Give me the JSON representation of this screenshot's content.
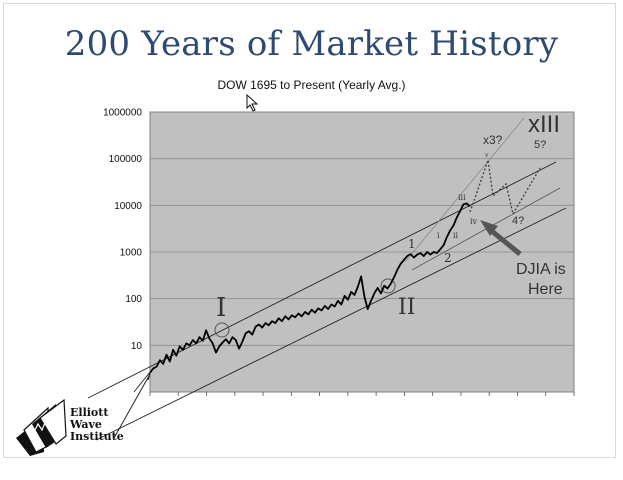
{
  "slide": {
    "title": "200 Years of Market History"
  },
  "logo": {
    "lines": [
      "Elliott",
      "Wave",
      "Institute"
    ],
    "icon": "elliott-wave-logo-icon"
  },
  "cursor_icon": "mouse-pointer-icon",
  "chart_data": {
    "type": "line",
    "title": "DOW 1695 to Present (Yearly Avg.)",
    "y_scale": "log",
    "ylim": [
      1,
      1000000
    ],
    "y_tick_labels": [
      "1000000",
      "100000",
      "10000",
      "1000",
      "100",
      "10"
    ],
    "x_tick_count": 15,
    "grid": true,
    "background": "#c0c0c0",
    "line_color": "#000000",
    "series": [
      {
        "values": [
          2.6,
          3.2,
          3.5,
          4.8,
          4.0,
          6.3,
          4.5,
          8.0,
          6.0,
          9.5,
          8.0,
          11.0,
          10.0,
          13.0,
          11.0,
          15.0,
          12.5,
          21.0,
          14.0,
          11.0,
          7.0,
          9.5,
          11.5,
          13.5,
          11.0,
          15.0,
          13.0,
          8.5,
          12.0,
          18.0,
          20.0,
          17.0,
          25.0,
          28.0,
          24.0,
          30.0,
          27.0,
          33.0,
          30.0,
          38.0,
          33.0,
          42.0,
          36.0,
          44.0,
          40.0,
          48.0,
          42.0,
          52.0,
          46.0,
          58.0,
          50.0,
          62.0,
          56.0,
          70.0,
          60.0,
          75.0,
          68.0,
          90.0,
          75.0,
          115.0,
          95.0,
          140.0,
          120.0,
          180.0,
          300.0,
          110.0,
          60.0,
          90.0,
          130.0,
          170.0,
          130.0,
          190.0,
          165.0,
          210.0,
          290.0,
          420.0,
          560.0,
          680.0,
          820.0,
          900.0,
          760.0,
          880.0,
          950.0,
          820.0,
          1000.0,
          880.0,
          1000.0,
          950.0,
          1150.0,
          1400.0,
          2100.0,
          2900.0,
          3700.0,
          5500.0,
          7500.0,
          10500.0,
          11000.0,
          9500.0
        ]
      }
    ],
    "annotations": {
      "wave_I": "I",
      "wave_II": "II",
      "wave_1": "1",
      "wave_2": "2",
      "wave_i": "i",
      "wave_ii": "ii",
      "wave_iii": "iii",
      "wave_iv": "iv",
      "wave_v": "v",
      "target_x3": "x3?",
      "target_5": "5?",
      "target_4": "4?",
      "target_XIII": "xIII",
      "djia_line1": "DJIA is",
      "djia_line2": "Here"
    }
  }
}
